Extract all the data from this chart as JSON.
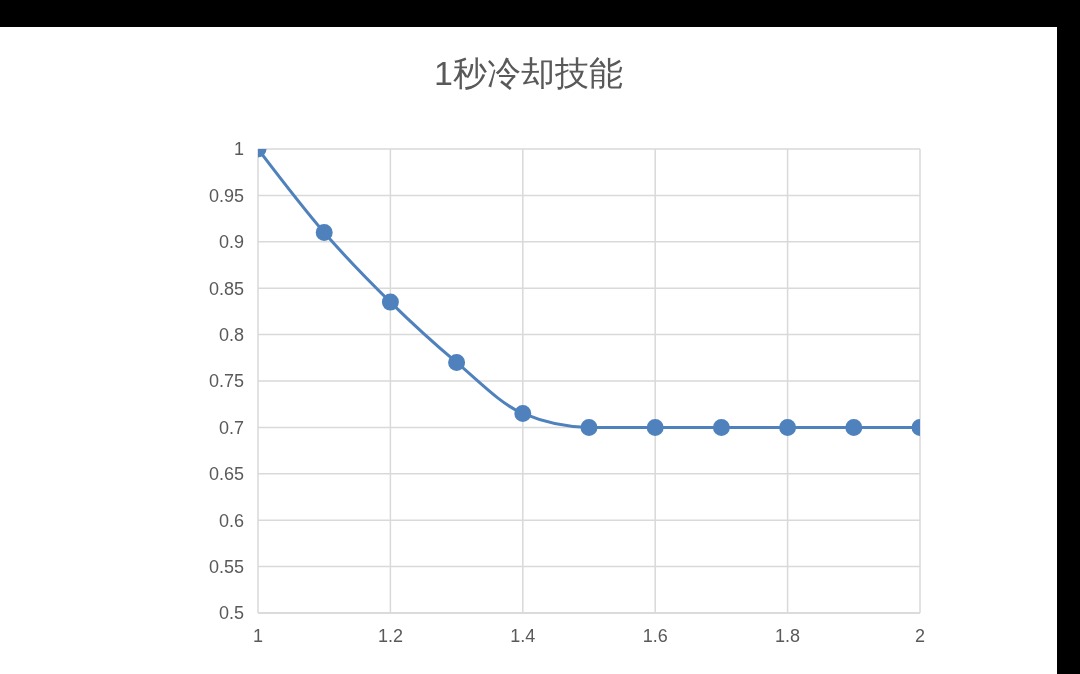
{
  "chart_data": {
    "type": "line",
    "title": "1秒冷却技能",
    "x": [
      1,
      1.1,
      1.2,
      1.3,
      1.4,
      1.5,
      1.6,
      1.7,
      1.8,
      1.9,
      2
    ],
    "series": [
      {
        "color": "#4f81bd",
        "values": [
          1,
          0.91,
          0.835,
          0.77,
          0.715,
          0.7,
          0.7,
          0.7,
          0.7,
          0.7,
          0.7
        ]
      }
    ],
    "xlim": [
      1,
      2
    ],
    "xticks": [
      1,
      1.2,
      1.4,
      1.6,
      1.8,
      2
    ],
    "ylim": [
      0.5,
      1
    ],
    "yticks": [
      0.5,
      0.55,
      0.6,
      0.65,
      0.7,
      0.75,
      0.8,
      0.85,
      0.9,
      0.95,
      1
    ],
    "grid": true,
    "marker": "circle",
    "line_style": "solid",
    "legend": false
  }
}
